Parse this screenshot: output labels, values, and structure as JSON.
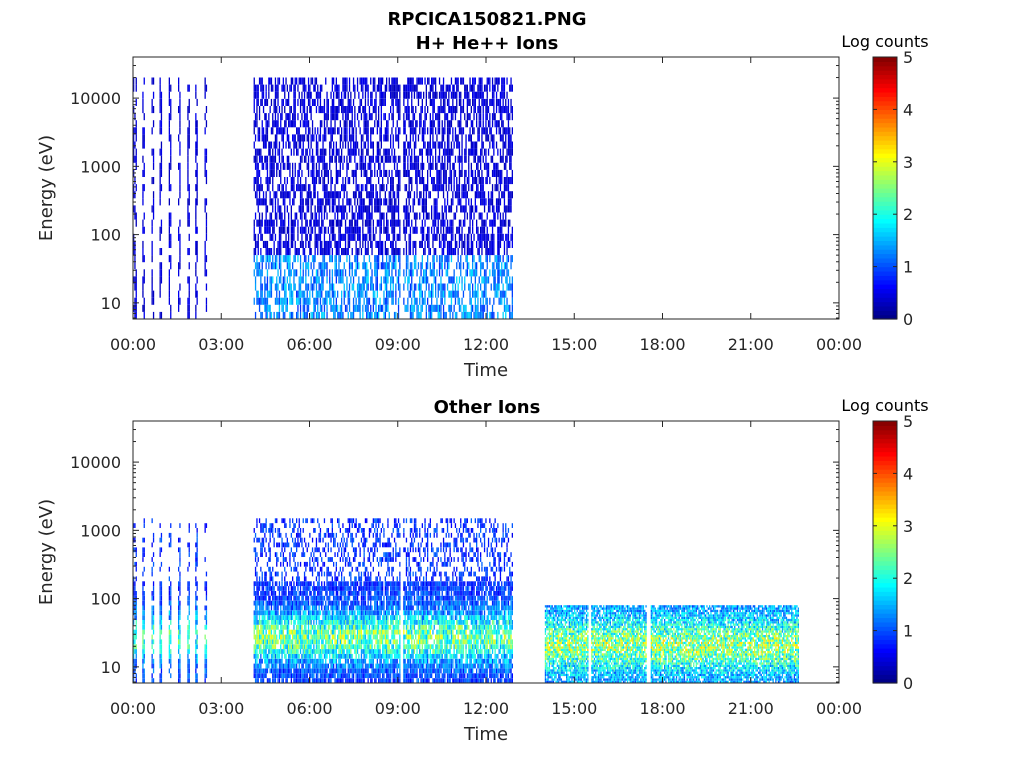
{
  "figure": {
    "title": "RPCICA150821.PNG"
  },
  "chart_data": [
    {
      "type": "heatmap",
      "title": "H+ He++ Ions",
      "xlabel": "Time",
      "ylabel": "Energy (eV)",
      "x_tick_labels": [
        "00:00",
        "03:00",
        "06:00",
        "09:00",
        "12:00",
        "15:00",
        "18:00",
        "21:00",
        "00:00"
      ],
      "x_ticks_hours": [
        0,
        3,
        6,
        9,
        12,
        15,
        18,
        21,
        24
      ],
      "xlim_hours": [
        0,
        24
      ],
      "y_tick_labels": [
        "10",
        "100",
        "1000",
        "10000"
      ],
      "y_ticks": [
        10,
        100,
        1000,
        10000
      ],
      "ylim": [
        5.8,
        40000
      ],
      "yscale": "log",
      "colorbar": {
        "label": "Log counts",
        "ticks": [
          "0",
          "1",
          "2",
          "3",
          "4",
          "5"
        ],
        "range": [
          0,
          5
        ],
        "colormap": "jet"
      },
      "data_segments": [
        {
          "start_hour": 0.0,
          "end_hour": 2.5,
          "pattern": "intermittent sweeps",
          "emax_ev": 20000,
          "typical_log_counts": 0.5
        },
        {
          "start_hour": 4.1,
          "end_hour": 12.9,
          "pattern": "continuous",
          "emax_ev": 20000,
          "typical_log_counts": 0.5,
          "low_energy_log_counts": 1.5
        }
      ]
    },
    {
      "type": "heatmap",
      "title": "Other Ions",
      "xlabel": "Time",
      "ylabel": "Energy (eV)",
      "x_tick_labels": [
        "00:00",
        "03:00",
        "06:00",
        "09:00",
        "12:00",
        "15:00",
        "18:00",
        "21:00",
        "00:00"
      ],
      "x_ticks_hours": [
        0,
        3,
        6,
        9,
        12,
        15,
        18,
        21,
        24
      ],
      "xlim_hours": [
        0,
        24
      ],
      "y_tick_labels": [
        "10",
        "100",
        "1000",
        "10000"
      ],
      "y_ticks": [
        10,
        100,
        1000,
        10000
      ],
      "ylim": [
        5.8,
        40000
      ],
      "yscale": "log",
      "colorbar": {
        "label": "Log counts",
        "ticks": [
          "0",
          "1",
          "2",
          "3",
          "4",
          "5"
        ],
        "range": [
          0,
          5
        ],
        "colormap": "jet"
      },
      "data_segments": [
        {
          "start_hour": 0.0,
          "end_hour": 2.5,
          "pattern": "intermittent sweeps",
          "emax_ev": 1500,
          "typical_log_counts": 1.0,
          "peak_energy_ev": 25,
          "peak_log_counts": 2.5
        },
        {
          "start_hour": 4.1,
          "end_hour": 12.9,
          "pattern": "continuous",
          "emax_ev": 1500,
          "typical_log_counts": 1.0,
          "peak_energy_ev": 25,
          "peak_log_counts": 2.8
        },
        {
          "start_hour": 14.0,
          "end_hour": 22.6,
          "pattern": "continuous",
          "emax_ev": 80,
          "typical_log_counts": 1.5,
          "peak_energy_ev": 20,
          "peak_log_counts": 3.0,
          "gaps_hours": [
            15.5,
            17.5
          ]
        }
      ]
    }
  ]
}
